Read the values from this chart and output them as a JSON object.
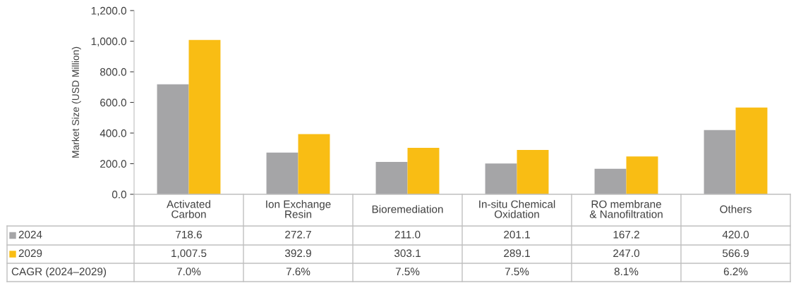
{
  "chart_data": {
    "type": "bar",
    "ylabel": "Market Size (USD Million)",
    "categories": [
      "Activated\nCarbon",
      "Ion Exchange\nResin",
      "Bioremediation",
      "In-situ Chemical\nOxidation",
      "RO membrane\n& Nanofiltration",
      "Others"
    ],
    "series": [
      {
        "name": "2024",
        "color": "#a5a5a7",
        "values": [
          718.6,
          272.7,
          211.0,
          201.1,
          167.2,
          420.0
        ],
        "value_labels": [
          "718.6",
          "272.7",
          "211.0",
          "201.1",
          "167.2",
          "420.0"
        ]
      },
      {
        "name": "2029",
        "color": "#f9bd14",
        "values": [
          1007.5,
          392.9,
          303.1,
          289.1,
          247.0,
          566.9
        ],
        "value_labels": [
          "1,007.5",
          "392.9",
          "303.1",
          "289.1",
          "247.0",
          "566.9"
        ]
      }
    ],
    "annotations": [
      "CAGR (2024–2029)",
      "7.0%",
      "7.6%",
      "7.5%",
      "7.5%",
      "8.1%",
      "6.2%"
    ],
    "ylim": [
      0,
      1200
    ],
    "yticks": [
      {
        "value": 0,
        "label": "0.0"
      },
      {
        "value": 200,
        "label": "200.0"
      },
      {
        "value": 400,
        "label": "400.0"
      },
      {
        "value": 600,
        "label": "600.0"
      },
      {
        "value": 800,
        "label": "800.0"
      },
      {
        "value": 1000,
        "label": "1,000.0"
      },
      {
        "value": 1200,
        "label": "1,200.0"
      }
    ],
    "legend": "bottom",
    "grid": false
  }
}
